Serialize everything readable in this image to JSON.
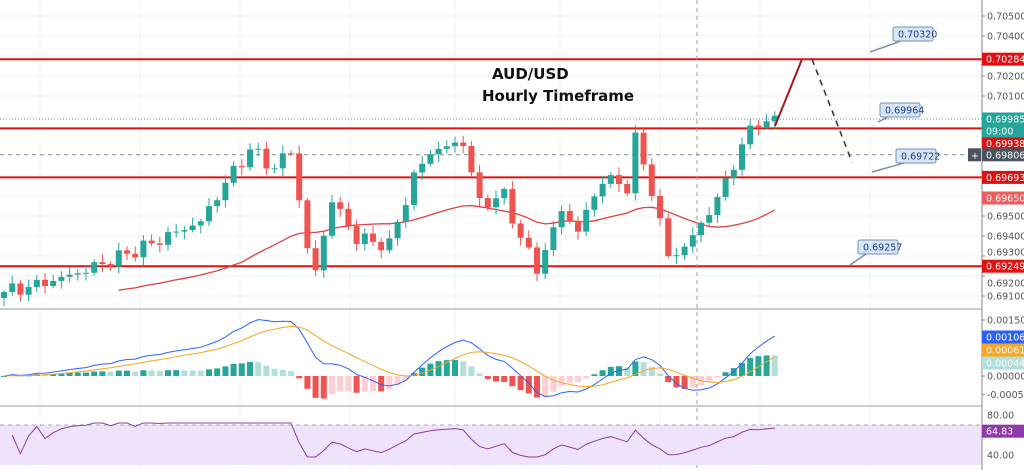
{
  "chart_data": {
    "type": "candlestick",
    "title_line1": "AUD/USD",
    "title_line2": "Hourly Timeframe",
    "price_axis": {
      "ticks": [
        "0.70500",
        "0.70400",
        "0.70200",
        "0.70100",
        "0.69500",
        "0.69400",
        "0.69300",
        "0.69200",
        "0.69100"
      ],
      "range": [
        0.6905,
        0.7055
      ]
    },
    "close_keypoints": [
      [
        0,
        0.6912
      ],
      [
        10,
        0.6925
      ],
      [
        18,
        0.6935
      ],
      [
        24,
        0.6945
      ],
      [
        27,
        0.6965
      ],
      [
        30,
        0.6983
      ],
      [
        33,
        0.6975
      ],
      [
        35,
        0.6985
      ],
      [
        37,
        0.6935
      ],
      [
        38,
        0.6925
      ],
      [
        40,
        0.696
      ],
      [
        43,
        0.694
      ],
      [
        47,
        0.6935
      ],
      [
        50,
        0.6968
      ],
      [
        52,
        0.698
      ],
      [
        56,
        0.6985
      ],
      [
        58,
        0.6955
      ],
      [
        61,
        0.696
      ],
      [
        63,
        0.694
      ],
      [
        65,
        0.6925
      ],
      [
        68,
        0.6955
      ],
      [
        70,
        0.6945
      ],
      [
        73,
        0.697
      ],
      [
        76,
        0.6965
      ],
      [
        77,
        0.6988
      ],
      [
        79,
        0.6962
      ],
      [
        81,
        0.6928
      ],
      [
        83,
        0.6932
      ],
      [
        86,
        0.695
      ],
      [
        88,
        0.6965
      ],
      [
        90,
        0.6985
      ],
      [
        92,
        0.6998
      ],
      [
        94,
        0.6998
      ]
    ],
    "candle_count": 95,
    "levels": [
      {
        "price": 0.70284,
        "label": "0.70284"
      },
      {
        "price": 0.69938,
        "label": "0.69938"
      },
      {
        "price": 0.69693,
        "label": "0.69693"
      },
      {
        "price": 0.69249,
        "label": "0.69249"
      }
    ],
    "last_price": {
      "price": 0.69985,
      "label": "0.69985",
      "countdown": "09:00"
    },
    "ma_label": {
      "price": 0.6965,
      "label": "0.69650"
    },
    "crosshair": {
      "price": 0.69806,
      "label": "0.69806"
    },
    "callouts": [
      {
        "label": "0.70320",
        "price": 0.7032
      },
      {
        "label": "0.69964",
        "price": 0.69964
      },
      {
        "label": "0.69722",
        "price": 0.69722
      },
      {
        "label": "0.69257",
        "price": 0.69257
      }
    ],
    "projection": {
      "up_target": 0.70284,
      "down_target": 0.6977
    },
    "macd": {
      "ticks": [
        "0.00150",
        "0.00000",
        "-0.00050"
      ],
      "macd_label": "0.00106",
      "signal_label": "0.00061",
      "hist_label": "0.00044"
    },
    "rsi": {
      "ticks": [
        "80.00",
        "40.00"
      ],
      "value_label": "64.83",
      "band": [
        30,
        70
      ]
    },
    "colors": {
      "up": "#26a69a",
      "down": "#ef5350",
      "level": "#e01010",
      "ma": "#e04040",
      "macd": "#2962ff",
      "signal": "#f5a623",
      "rsi": "#8e3aa8",
      "rsi_band": "#efe3fb"
    }
  }
}
